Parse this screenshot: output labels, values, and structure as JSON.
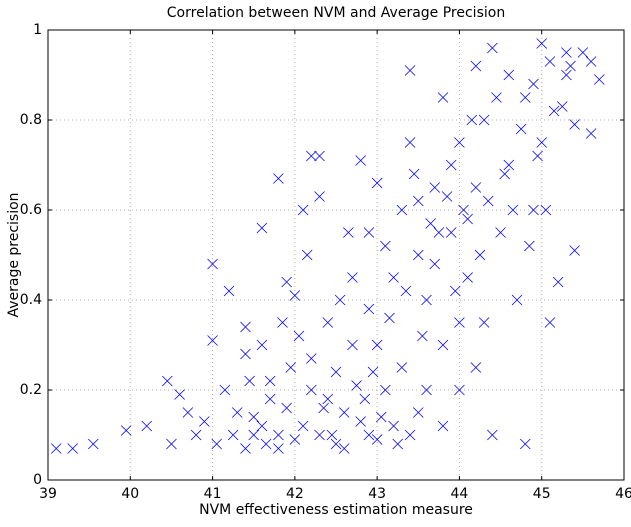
{
  "chart_data": {
    "type": "scatter",
    "title": "Correlation between NVM and Average Precision",
    "xlabel": "NVM effectiveness estimation measure",
    "ylabel": "Average precision",
    "color": "#0000ff",
    "grid": true,
    "xlim": [
      39,
      46
    ],
    "xticks": [
      39,
      40,
      41,
      42,
      43,
      44,
      45,
      46
    ],
    "ylim": [
      0,
      1
    ],
    "yticks": [
      0,
      0.2,
      0.4,
      0.6,
      0.8,
      1
    ],
    "x": [
      39.1,
      39.3,
      39.55,
      39.95,
      40.2,
      40.45,
      40.5,
      40.6,
      40.7,
      40.8,
      40.9,
      41.0,
      41.0,
      41.2,
      41.05,
      41.15,
      41.3,
      41.4,
      41.4,
      41.6,
      41.6,
      41.8,
      41.9,
      41.5,
      41.7,
      41.8,
      41.95,
      42.0,
      42.1,
      42.2,
      42.3,
      42.3,
      42.1,
      42.2,
      42.4,
      42.5,
      42.6,
      42.7,
      42.8,
      42.9,
      42.9,
      43.0,
      43.0,
      43.1,
      43.2,
      43.3,
      43.4,
      43.4,
      43.5,
      43.5,
      43.6,
      43.7,
      43.8,
      43.8,
      43.9,
      44.0,
      44.0,
      44.1,
      44.2,
      44.2,
      44.3,
      44.3,
      44.4,
      44.4,
      44.5,
      44.6,
      44.6,
      44.7,
      44.8,
      44.8,
      44.9,
      45.0,
      45.0,
      45.1,
      45.2,
      45.3,
      45.4,
      45.4,
      45.5,
      45.6,
      45.7,
      45.6,
      45.3,
      45.1,
      44.9,
      41.6,
      41.7,
      41.9,
      42.0,
      42.2,
      42.3,
      42.4,
      42.5,
      42.6,
      42.7,
      42.8,
      42.9,
      43.0,
      43.1,
      43.2,
      43.3,
      43.4,
      43.5,
      43.6,
      43.7,
      43.8,
      43.9,
      44.0,
      44.1,
      44.2,
      41.4,
      41.5,
      41.8,
      42.05,
      42.35,
      42.55,
      42.75,
      42.95,
      43.15,
      43.35,
      43.55,
      43.75,
      43.95,
      44.15,
      44.35,
      44.55,
      44.75,
      44.95,
      45.15,
      45.35,
      41.25,
      41.45,
      41.65,
      41.85,
      42.15,
      42.45,
      42.65,
      42.85,
      43.05,
      43.25,
      43.45,
      43.65,
      43.85,
      44.05,
      44.25,
      44.45,
      44.65,
      44.85,
      45.05,
      45.25
    ],
    "values": [
      0.07,
      0.07,
      0.08,
      0.11,
      0.12,
      0.22,
      0.08,
      0.19,
      0.15,
      0.1,
      0.13,
      0.48,
      0.31,
      0.42,
      0.08,
      0.2,
      0.15,
      0.28,
      0.34,
      0.56,
      0.3,
      0.67,
      0.44,
      0.1,
      0.18,
      0.07,
      0.25,
      0.41,
      0.6,
      0.72,
      0.72,
      0.63,
      0.12,
      0.2,
      0.35,
      0.08,
      0.15,
      0.45,
      0.71,
      0.55,
      0.1,
      0.66,
      0.3,
      0.2,
      0.45,
      0.6,
      0.91,
      0.75,
      0.5,
      0.15,
      0.4,
      0.65,
      0.85,
      0.3,
      0.55,
      0.75,
      0.2,
      0.45,
      0.92,
      0.65,
      0.8,
      0.35,
      0.96,
      0.1,
      0.55,
      0.9,
      0.7,
      0.4,
      0.08,
      0.85,
      0.6,
      0.97,
      0.75,
      0.35,
      0.44,
      0.9,
      0.79,
      0.51,
      0.95,
      0.77,
      0.89,
      0.93,
      0.95,
      0.93,
      0.88,
      0.12,
      0.22,
      0.16,
      0.09,
      0.27,
      0.1,
      0.18,
      0.24,
      0.07,
      0.3,
      0.13,
      0.38,
      0.09,
      0.52,
      0.12,
      0.25,
      0.1,
      0.62,
      0.2,
      0.48,
      0.12,
      0.7,
      0.35,
      0.58,
      0.25,
      0.07,
      0.14,
      0.1,
      0.32,
      0.16,
      0.4,
      0.21,
      0.24,
      0.36,
      0.42,
      0.32,
      0.55,
      0.42,
      0.8,
      0.62,
      0.68,
      0.78,
      0.72,
      0.82,
      0.92,
      0.1,
      0.22,
      0.08,
      0.35,
      0.5,
      0.1,
      0.55,
      0.18,
      0.14,
      0.08,
      0.68,
      0.57,
      0.63,
      0.6,
      0.5,
      0.85,
      0.6,
      0.52,
      0.6,
      0.83
    ]
  }
}
